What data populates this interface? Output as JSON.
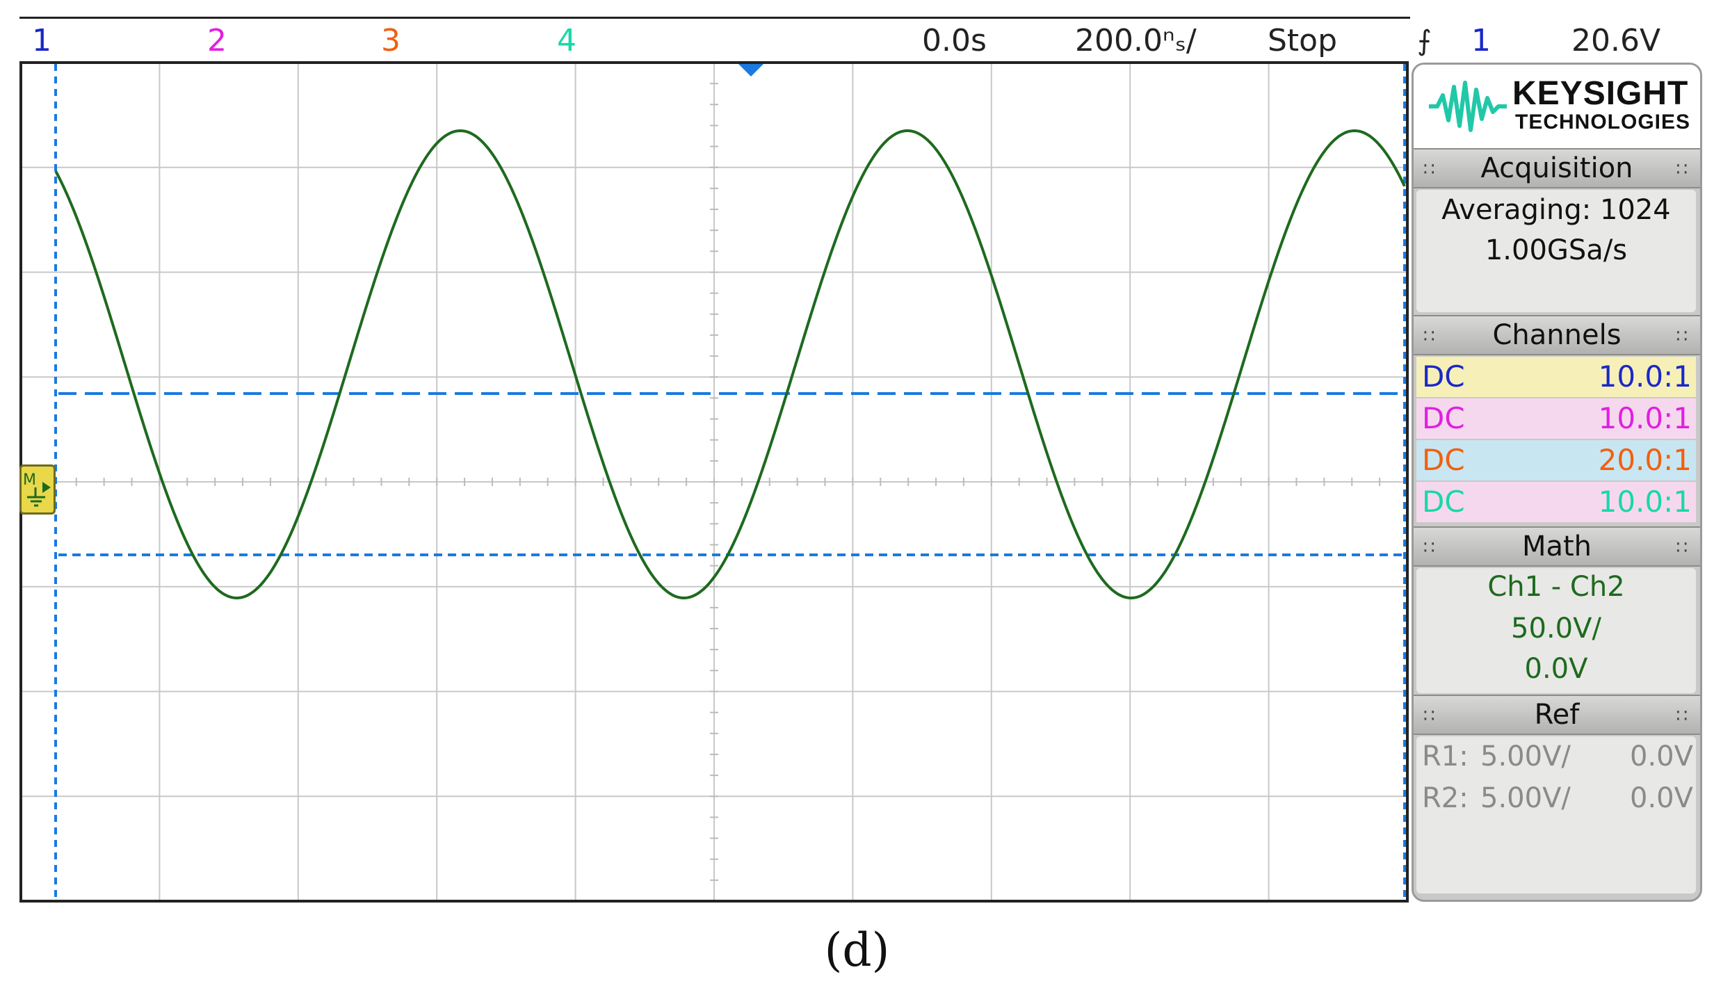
{
  "top_bar": {
    "channels": [
      {
        "label": "1",
        "color": "#1a28c8"
      },
      {
        "label": "2",
        "color": "#e020e0"
      },
      {
        "label": "3",
        "color": "#f06010"
      },
      {
        "label": "4",
        "color": "#18d8a8"
      }
    ],
    "delay": "0.0s",
    "timebase": "200.0ⁿₛ/",
    "run_state": "Stop",
    "trigger_icon": "trigger-edge-icon",
    "trigger_source": "1",
    "trigger_source_color": "#1a28c8",
    "trigger_level": "20.6V"
  },
  "display": {
    "trace_color": "#1e6a1e",
    "cursor_color": "#1a7ae0",
    "grid_color": "#c8c8c8",
    "waveform": {
      "cycles_visible": 3.1,
      "phase_at_left": "descending",
      "shape": "sine"
    }
  },
  "panel": {
    "logo": {
      "name": "KEYSIGHT",
      "sub": "TECHNOLOGIES",
      "icon": "keysight-wave-icon",
      "color": "#20c8a8"
    },
    "acquisition": {
      "title": "Acquisition",
      "mode": "Averaging: 1024",
      "rate": "1.00GSa/s"
    },
    "channels": {
      "title": "Channels",
      "rows": [
        {
          "coupling": "DC",
          "probe": "10.0:1",
          "color": "#1a28c8",
          "bg": "#f6f0b8"
        },
        {
          "coupling": "DC",
          "probe": "10.0:1",
          "color": "#e020e0",
          "bg": "#f6d8ee"
        },
        {
          "coupling": "DC",
          "probe": "20.0:1",
          "color": "#f06010",
          "bg": "#c8e6f2"
        },
        {
          "coupling": "DC",
          "probe": "10.0:1",
          "color": "#18d8a8",
          "bg": "#f6d8ee"
        }
      ]
    },
    "math": {
      "title": "Math",
      "function": "Ch1 - Ch2",
      "scale": "50.0V/",
      "offset": "0.0V",
      "color": "#1e6a1e"
    },
    "ref": {
      "title": "Ref",
      "rows": [
        {
          "name": "R1:",
          "scale": "5.00V/",
          "offset": "0.0V"
        },
        {
          "name": "R2:",
          "scale": "5.00V/",
          "offset": "0.0V"
        }
      ]
    }
  },
  "caption": "(d)"
}
